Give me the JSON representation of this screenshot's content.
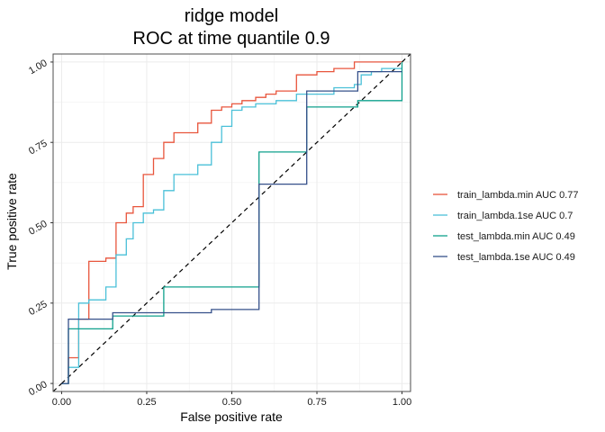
{
  "chart_data": {
    "type": "line",
    "title_lines": [
      "ridge model",
      "ROC at time quantile 0.9"
    ],
    "xlabel": "False positive rate",
    "ylabel": "True positive rate",
    "xlim": [
      -0.025,
      1.025
    ],
    "ylim": [
      -0.025,
      1.025
    ],
    "x_ticks": [
      0,
      0.25,
      0.5,
      0.75,
      1
    ],
    "x_tick_labels": [
      "0.00",
      "0.25",
      "0.50",
      "0.75",
      "1.00"
    ],
    "y_ticks": [
      0,
      0.25,
      0.5,
      0.75,
      1
    ],
    "y_tick_labels": [
      "0.00",
      "0.25",
      "0.50",
      "0.75",
      "1.00"
    ],
    "grid": true,
    "legend_position": "right",
    "reference_line": {
      "x": [
        0,
        1
      ],
      "y": [
        0,
        1
      ],
      "style": "dashed",
      "color": "#000000"
    },
    "series": [
      {
        "name": "train_lambda.min AUC 0.77",
        "color": "#E8553C",
        "x": [
          0,
          0.02,
          0.02,
          0.05,
          0.05,
          0.08,
          0.08,
          0.13,
          0.13,
          0.16,
          0.16,
          0.19,
          0.19,
          0.21,
          0.21,
          0.24,
          0.24,
          0.27,
          0.27,
          0.3,
          0.3,
          0.33,
          0.33,
          0.4,
          0.4,
          0.44,
          0.44,
          0.47,
          0.47,
          0.5,
          0.5,
          0.53,
          0.53,
          0.57,
          0.57,
          0.6,
          0.6,
          0.63,
          0.63,
          0.69,
          0.69,
          0.75,
          0.75,
          0.8,
          0.8,
          0.86,
          0.86,
          0.97,
          0.97,
          1.0,
          1.0
        ],
        "y": [
          0,
          0,
          0.08,
          0.08,
          0.2,
          0.2,
          0.38,
          0.38,
          0.39,
          0.39,
          0.5,
          0.5,
          0.53,
          0.53,
          0.55,
          0.55,
          0.65,
          0.65,
          0.7,
          0.7,
          0.75,
          0.75,
          0.78,
          0.78,
          0.81,
          0.81,
          0.85,
          0.85,
          0.86,
          0.86,
          0.87,
          0.87,
          0.88,
          0.88,
          0.89,
          0.89,
          0.9,
          0.9,
          0.91,
          0.91,
          0.96,
          0.96,
          0.97,
          0.97,
          0.98,
          0.98,
          1.0,
          1.0,
          1.0,
          1.0,
          1.0
        ]
      },
      {
        "name": "train_lambda.1se AUC 0.7",
        "color": "#4AC0D8",
        "x": [
          0,
          0.02,
          0.02,
          0.05,
          0.05,
          0.08,
          0.08,
          0.13,
          0.13,
          0.16,
          0.16,
          0.19,
          0.19,
          0.21,
          0.21,
          0.24,
          0.24,
          0.27,
          0.27,
          0.3,
          0.3,
          0.33,
          0.33,
          0.36,
          0.36,
          0.4,
          0.4,
          0.44,
          0.44,
          0.47,
          0.47,
          0.5,
          0.5,
          0.53,
          0.53,
          0.57,
          0.57,
          0.63,
          0.63,
          0.69,
          0.69,
          0.75,
          0.75,
          0.8,
          0.8,
          0.86,
          0.86,
          0.88,
          0.88,
          0.91,
          0.91,
          0.94,
          0.94,
          1.0
        ],
        "y": [
          0,
          0,
          0.05,
          0.05,
          0.25,
          0.25,
          0.26,
          0.26,
          0.3,
          0.3,
          0.4,
          0.4,
          0.45,
          0.45,
          0.5,
          0.5,
          0.53,
          0.53,
          0.54,
          0.54,
          0.6,
          0.6,
          0.65,
          0.65,
          0.65,
          0.65,
          0.68,
          0.68,
          0.75,
          0.75,
          0.8,
          0.8,
          0.85,
          0.85,
          0.86,
          0.86,
          0.87,
          0.87,
          0.88,
          0.88,
          0.9,
          0.9,
          0.9,
          0.9,
          0.92,
          0.92,
          0.93,
          0.93,
          0.96,
          0.96,
          0.97,
          0.97,
          0.98,
          0.98
        ]
      },
      {
        "name": "test_lambda.min AUC 0.49",
        "color": "#0FA08C",
        "x": [
          0,
          0.02,
          0.02,
          0.15,
          0.15,
          0.3,
          0.3,
          0.58,
          0.58,
          0.72,
          0.72,
          0.87,
          0.87,
          1.0,
          1.0
        ],
        "y": [
          0,
          0,
          0.17,
          0.17,
          0.21,
          0.21,
          0.3,
          0.3,
          0.72,
          0.72,
          0.86,
          0.86,
          0.88,
          0.88,
          1.0
        ]
      },
      {
        "name": "test_lambda.1se AUC 0.49",
        "color": "#35508A",
        "x": [
          0,
          0.02,
          0.02,
          0.15,
          0.15,
          0.44,
          0.44,
          0.58,
          0.58,
          0.72,
          0.72,
          0.87,
          0.87,
          1.0
        ],
        "y": [
          0,
          0,
          0.2,
          0.2,
          0.22,
          0.22,
          0.23,
          0.23,
          0.62,
          0.62,
          0.91,
          0.91,
          0.97,
          0.97
        ]
      }
    ]
  }
}
